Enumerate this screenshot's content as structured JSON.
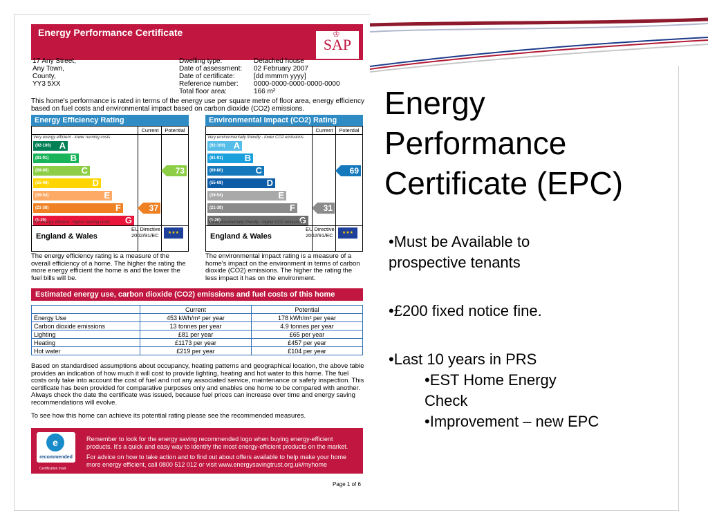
{
  "slide": {
    "title_lines": [
      "Energy",
      "Performance",
      "Certificate (EPC)"
    ],
    "bullets": [
      "•Must be Available to",
      "prospective tenants",
      "•£200 fixed notice fine.",
      "•Last 10 years in PRS",
      "•EST Home Energy",
      "Check",
      "•Improvement – new EPC"
    ]
  },
  "doc": {
    "title": "Energy Performance Certificate",
    "logo_text": "SAP",
    "address": [
      "17 Any Street,",
      "Any Town,",
      "County,",
      "YY3 5XX"
    ],
    "details": [
      {
        "k": "Dwelling type:",
        "v": "Detached house"
      },
      {
        "k": "Date of assessment:",
        "v": "02 February 2007"
      },
      {
        "k": "Date of certificate:",
        "v": "[dd mmmm yyyy]"
      },
      {
        "k": "Reference number:",
        "v": "0000-0000-0000-0000-0000"
      },
      {
        "k": "Total floor area:",
        "v": "166 m²"
      }
    ],
    "intro": "This home's performance is rated in terms of the energy use per square metre of floor area, energy efficiency based on fuel costs and environmental impact based on carbon dioxide (CO2) emissions.",
    "efficiency": {
      "title": "Energy Efficiency Rating",
      "col_current": "Current",
      "col_potential": "Potential",
      "top_note": "Very energy efficient - lower running costs",
      "bottom_note": "Not energy efficient - higher running costs",
      "current": "37",
      "potential": "73",
      "bands": [
        {
          "range": "(92-100)",
          "letter": "A",
          "color": "#008054"
        },
        {
          "range": "(81-91)",
          "letter": "B",
          "color": "#19b459"
        },
        {
          "range": "(69-80)",
          "letter": "C",
          "color": "#8dce46"
        },
        {
          "range": "(55-68)",
          "letter": "D",
          "color": "#ffd500"
        },
        {
          "range": "(39-54)",
          "letter": "E",
          "color": "#fcaa65"
        },
        {
          "range": "(21-38)",
          "letter": "F",
          "color": "#ef8023"
        },
        {
          "range": "(1-20)",
          "letter": "G",
          "color": "#e9153b"
        }
      ],
      "region": "England & Wales",
      "directive": [
        "EU Directive",
        "2002/91/EC"
      ],
      "description": "The energy efficiency rating is a measure of the overall efficiency of a home. The higher the rating the more energy efficient the home is and the lower the fuel bills will be."
    },
    "environmental": {
      "title": "Environmental Impact (CO2) Rating",
      "col_current": "Current",
      "col_potential": "Potential",
      "top_note": "Very environmentally friendly - lower CO2 emissions",
      "bottom_note": "Not environmentally friendly - higher CO2 emissions",
      "current": "31",
      "potential": "69",
      "bands": [
        {
          "range": "(92-100)",
          "letter": "A",
          "color": "#55bde8"
        },
        {
          "range": "(81-91)",
          "letter": "B",
          "color": "#1aa0dd"
        },
        {
          "range": "(69-80)",
          "letter": "C",
          "color": "#1478bd"
        },
        {
          "range": "(55-68)",
          "letter": "D",
          "color": "#0d5ca8"
        },
        {
          "range": "(39-54)",
          "letter": "E",
          "color": "#a9a9a9"
        },
        {
          "range": "(21-38)",
          "letter": "F",
          "color": "#8b8b8b"
        },
        {
          "range": "(1-20)",
          "letter": "G",
          "color": "#6c6c6c"
        }
      ],
      "region": "England & Wales",
      "directive": [
        "EU Directive",
        "2002/91/EC"
      ],
      "description": "The environmental impact rating is a measure of a home's impact on the environment in terms of carbon dioxide (CO2) emissions. The higher the rating the less impact it has on the environment."
    },
    "costs": {
      "title": "Estimated energy use, carbon dioxide (CO2) emissions and fuel costs of this home",
      "headers": [
        "",
        "Current",
        "Potential"
      ],
      "rows": [
        [
          "Energy Use",
          "453 kWh/m² per year",
          "178 kWh/m² per year"
        ],
        [
          "Carbon dioxide emissions",
          "13 tonnes per year",
          "4.9 tonnes per year"
        ],
        [
          "Lighting",
          "£81 per year",
          "£65 per year"
        ],
        [
          "Heating",
          "£1173 per year",
          "£457 per year"
        ],
        [
          "Hot water",
          "£219 per year",
          "£104 per year"
        ]
      ]
    },
    "assumptions": "Based on standardised assumptions about occupancy, heating patterns and geographical location, the above table provides an indication of how much it will cost to provide lighting, heating and hot water to this home. The fuel costs only take into account the cost of fuel and not any associated service, maintenance or safety inspection. This certificate has been provided for comparative purposes only and enables one home to be compared with another. Always check the date the certificate was issued, because fuel prices can increase over time and energy saving recommendations will evolve.",
    "see_how": "To see how this home can achieve its potential rating please see the recommended measures.",
    "promo": {
      "logo_label": "recommended",
      "cert_mark": "Certification mark",
      "line1": "Remember to look for the energy saving recommended logo when buying energy-efficient products. It's a quick and easy way to identify the most energy-efficient products on the market.",
      "line2": "For advice on how to take action and to find out about offers available to help make your home more energy efficient, call 0800 512 012 or visit www.energysavingtrust.org.uk/myhome"
    },
    "page": "Page 1 of 6"
  },
  "colors": {
    "brand_red": "#c0163f",
    "header_blue": "#2e8bc4"
  }
}
